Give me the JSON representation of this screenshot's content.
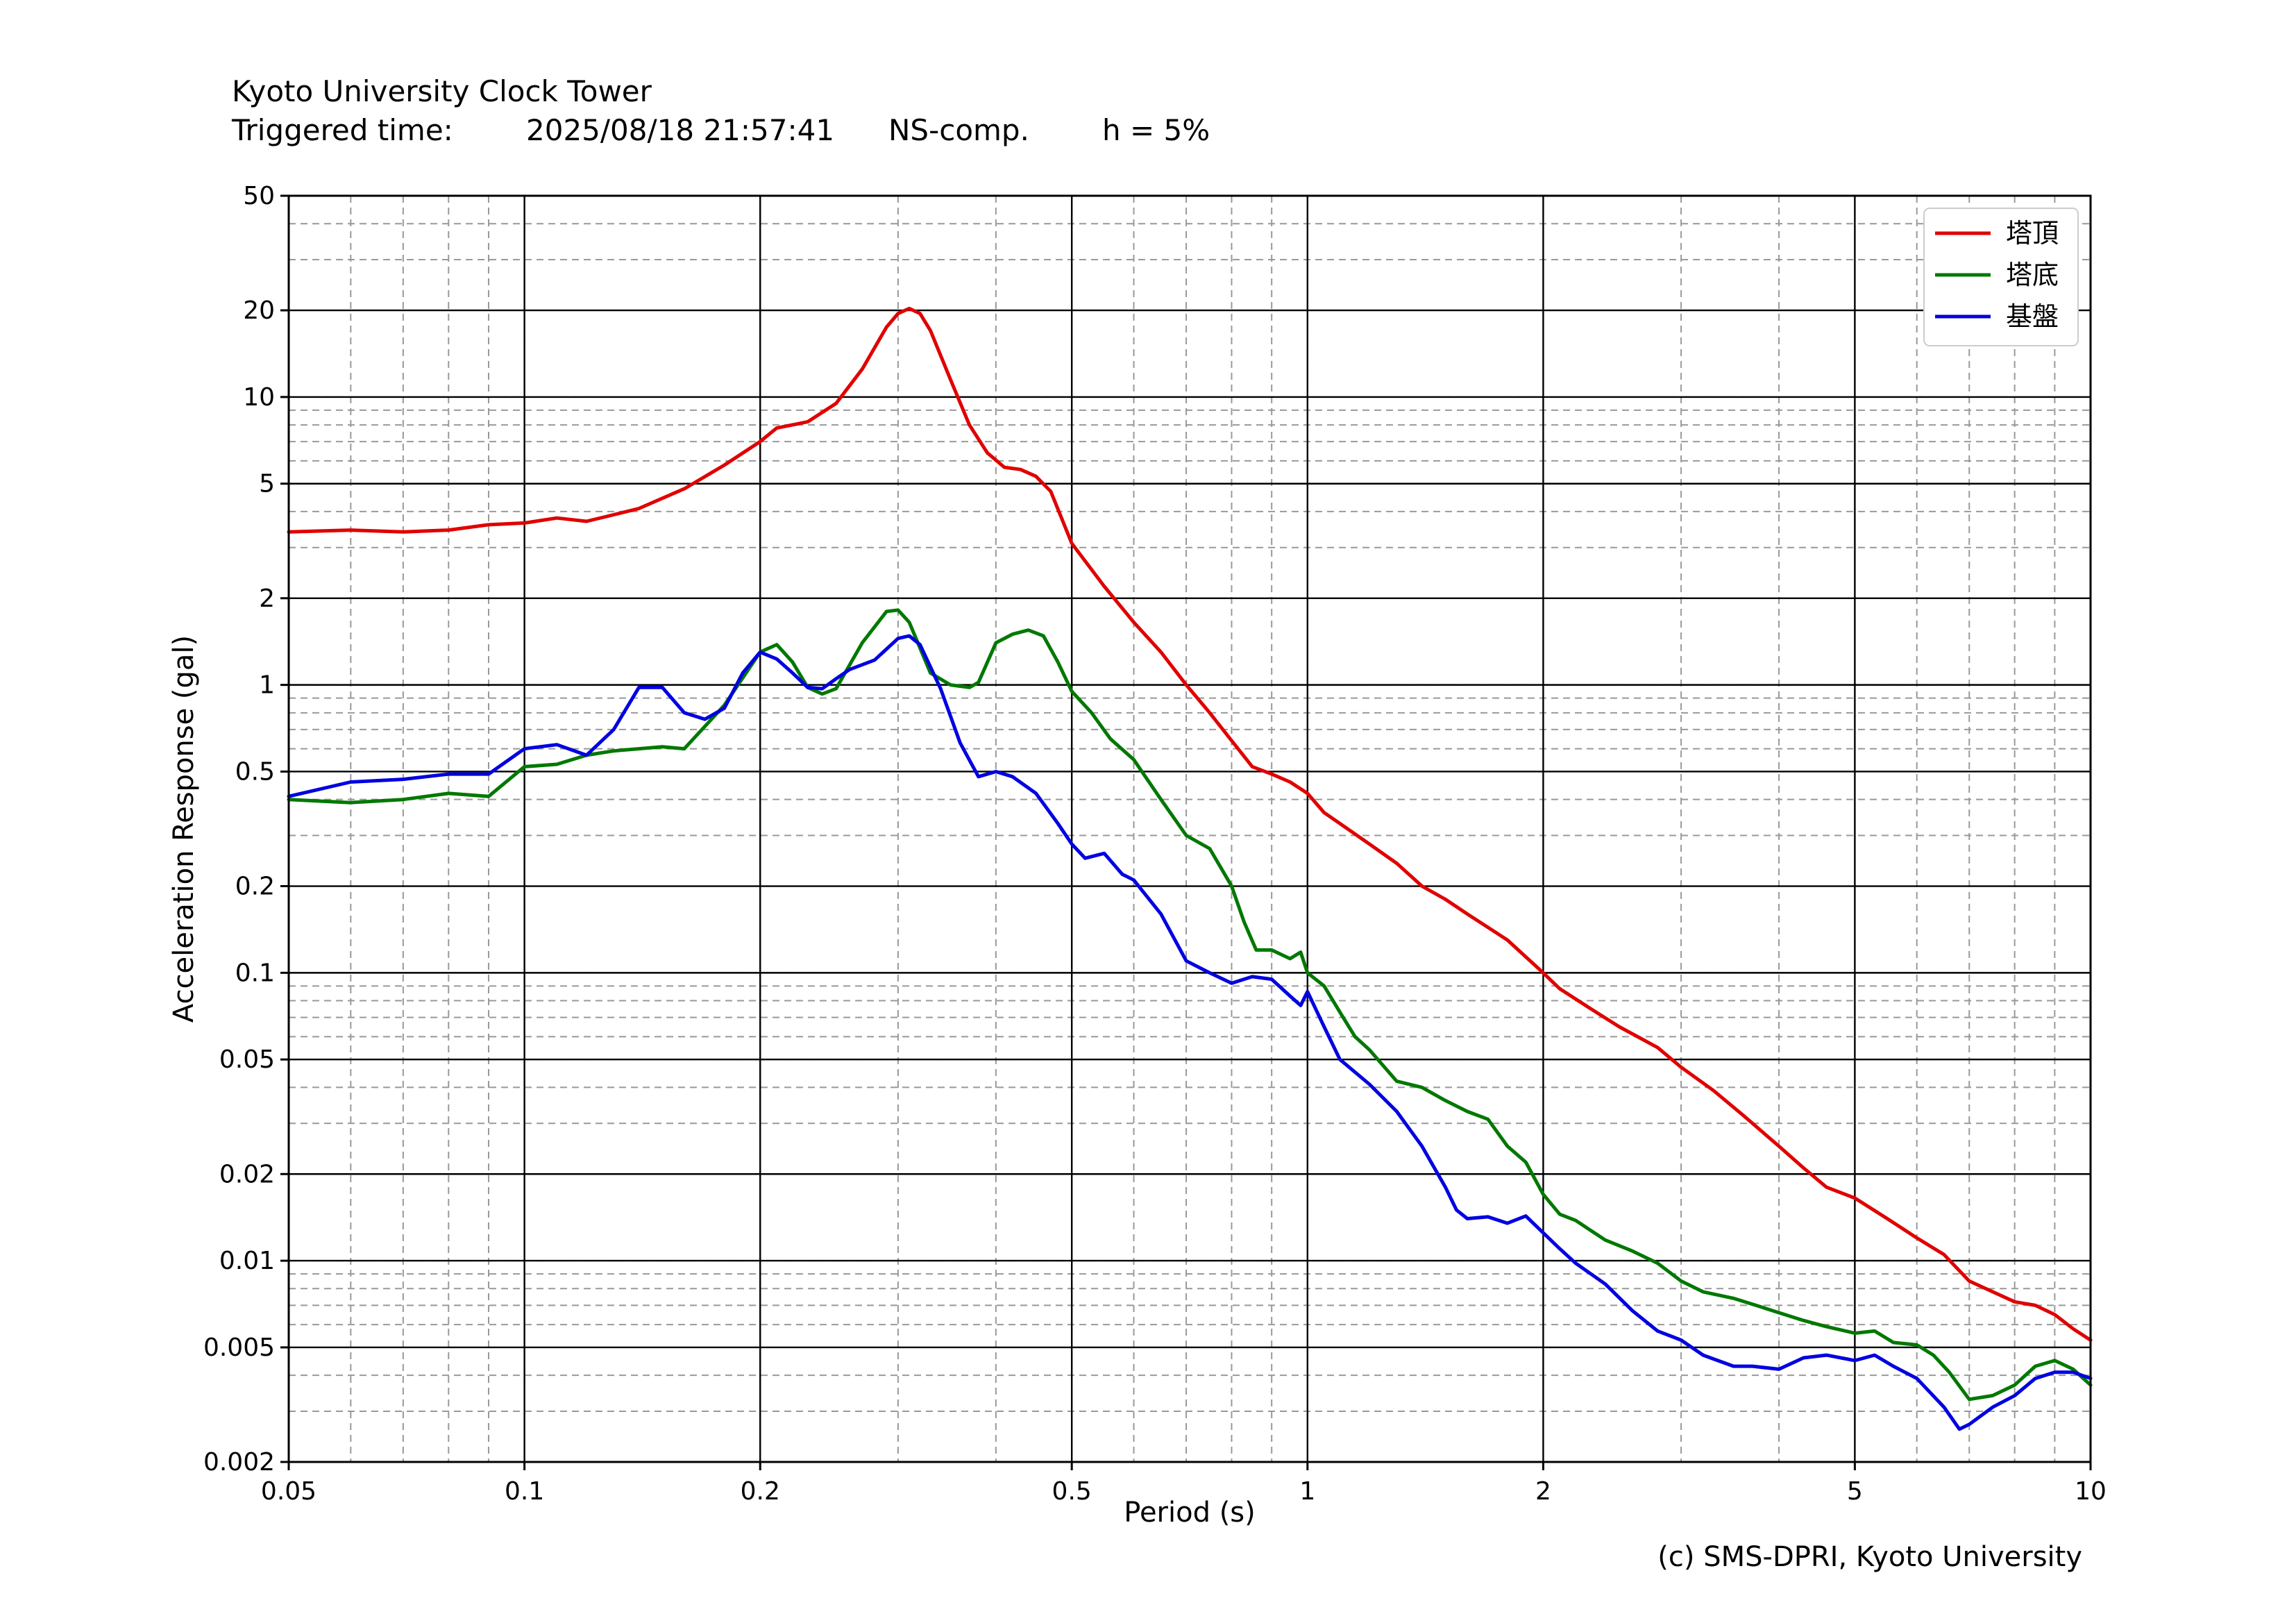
{
  "header": {
    "title": "Kyoto University Clock Tower",
    "triggered_label": "Triggered time:",
    "triggered_value": "2025/08/18 21:57:41",
    "component": "NS-comp.",
    "damping": "h = 5%"
  },
  "credit": "(c) SMS-DPRI, Kyoto University",
  "chart_data": {
    "type": "line",
    "xlabel": "Period (s)",
    "ylabel": "Acceleration Response (gal)",
    "xscale": "log",
    "yscale": "log",
    "xlim": [
      0.05,
      10
    ],
    "ylim": [
      0.002,
      50
    ],
    "grid": true,
    "legend_position": "top-right",
    "x_ticks": [
      {
        "v": 0.05,
        "label": "0.05"
      },
      {
        "v": 0.1,
        "label": "0.1"
      },
      {
        "v": 0.2,
        "label": "0.2"
      },
      {
        "v": 0.5,
        "label": "0.5"
      },
      {
        "v": 1,
        "label": "1"
      },
      {
        "v": 2,
        "label": "2"
      },
      {
        "v": 5,
        "label": "5"
      },
      {
        "v": 10,
        "label": "10"
      }
    ],
    "y_ticks": [
      {
        "v": 0.002,
        "label": "0.002"
      },
      {
        "v": 0.005,
        "label": "0.005"
      },
      {
        "v": 0.01,
        "label": "0.01"
      },
      {
        "v": 0.02,
        "label": "0.02"
      },
      {
        "v": 0.05,
        "label": "0.05"
      },
      {
        "v": 0.1,
        "label": "0.1"
      },
      {
        "v": 0.2,
        "label": "0.2"
      },
      {
        "v": 0.5,
        "label": "0.5"
      },
      {
        "v": 1,
        "label": "1"
      },
      {
        "v": 2,
        "label": "2"
      },
      {
        "v": 5,
        "label": "5"
      },
      {
        "v": 10,
        "label": "10"
      },
      {
        "v": 20,
        "label": "20"
      },
      {
        "v": 50,
        "label": "50"
      }
    ],
    "series": [
      {
        "name": "塔頂",
        "color": "#e00000",
        "points": [
          [
            0.05,
            3.4
          ],
          [
            0.06,
            3.45
          ],
          [
            0.07,
            3.4
          ],
          [
            0.08,
            3.45
          ],
          [
            0.09,
            3.6
          ],
          [
            0.1,
            3.65
          ],
          [
            0.11,
            3.8
          ],
          [
            0.12,
            3.7
          ],
          [
            0.13,
            3.9
          ],
          [
            0.14,
            4.1
          ],
          [
            0.16,
            4.8
          ],
          [
            0.18,
            5.8
          ],
          [
            0.2,
            7.0
          ],
          [
            0.21,
            7.8
          ],
          [
            0.23,
            8.2
          ],
          [
            0.25,
            9.5
          ],
          [
            0.27,
            12.5
          ],
          [
            0.29,
            17.5
          ],
          [
            0.3,
            19.5
          ],
          [
            0.31,
            20.3
          ],
          [
            0.32,
            19.5
          ],
          [
            0.33,
            17.0
          ],
          [
            0.35,
            11.5
          ],
          [
            0.37,
            8.0
          ],
          [
            0.39,
            6.4
          ],
          [
            0.41,
            5.7
          ],
          [
            0.43,
            5.6
          ],
          [
            0.45,
            5.3
          ],
          [
            0.47,
            4.7
          ],
          [
            0.5,
            3.1
          ],
          [
            0.55,
            2.2
          ],
          [
            0.6,
            1.65
          ],
          [
            0.65,
            1.3
          ],
          [
            0.7,
            1.0
          ],
          [
            0.75,
            0.8
          ],
          [
            0.8,
            0.64
          ],
          [
            0.85,
            0.52
          ],
          [
            0.9,
            0.49
          ],
          [
            0.95,
            0.46
          ],
          [
            1.0,
            0.42
          ],
          [
            1.05,
            0.36
          ],
          [
            1.1,
            0.33
          ],
          [
            1.2,
            0.28
          ],
          [
            1.3,
            0.24
          ],
          [
            1.4,
            0.2
          ],
          [
            1.5,
            0.18
          ],
          [
            1.6,
            0.16
          ],
          [
            1.8,
            0.13
          ],
          [
            2.0,
            0.1
          ],
          [
            2.1,
            0.088
          ],
          [
            2.3,
            0.075
          ],
          [
            2.5,
            0.065
          ],
          [
            2.8,
            0.055
          ],
          [
            3.0,
            0.047
          ],
          [
            3.3,
            0.039
          ],
          [
            3.6,
            0.032
          ],
          [
            4.0,
            0.025
          ],
          [
            4.3,
            0.021
          ],
          [
            4.6,
            0.018
          ],
          [
            5.0,
            0.0165
          ],
          [
            5.5,
            0.014
          ],
          [
            6.0,
            0.012
          ],
          [
            6.5,
            0.0105
          ],
          [
            7.0,
            0.0085
          ],
          [
            7.5,
            0.0078
          ],
          [
            8.0,
            0.0072
          ],
          [
            8.5,
            0.007
          ],
          [
            9.0,
            0.0065
          ],
          [
            9.5,
            0.0058
          ],
          [
            10.0,
            0.0053
          ]
        ]
      },
      {
        "name": "塔底",
        "color": "#007800",
        "points": [
          [
            0.05,
            0.4
          ],
          [
            0.06,
            0.39
          ],
          [
            0.07,
            0.4
          ],
          [
            0.08,
            0.42
          ],
          [
            0.09,
            0.41
          ],
          [
            0.1,
            0.52
          ],
          [
            0.11,
            0.53
          ],
          [
            0.12,
            0.57
          ],
          [
            0.13,
            0.59
          ],
          [
            0.14,
            0.6
          ],
          [
            0.15,
            0.61
          ],
          [
            0.16,
            0.6
          ],
          [
            0.18,
            0.85
          ],
          [
            0.2,
            1.3
          ],
          [
            0.21,
            1.38
          ],
          [
            0.22,
            1.2
          ],
          [
            0.23,
            0.98
          ],
          [
            0.24,
            0.93
          ],
          [
            0.25,
            0.97
          ],
          [
            0.27,
            1.4
          ],
          [
            0.29,
            1.8
          ],
          [
            0.3,
            1.82
          ],
          [
            0.31,
            1.65
          ],
          [
            0.33,
            1.1
          ],
          [
            0.35,
            1.0
          ],
          [
            0.37,
            0.98
          ],
          [
            0.38,
            1.02
          ],
          [
            0.4,
            1.4
          ],
          [
            0.42,
            1.5
          ],
          [
            0.44,
            1.55
          ],
          [
            0.46,
            1.48
          ],
          [
            0.48,
            1.2
          ],
          [
            0.5,
            0.95
          ],
          [
            0.53,
            0.8
          ],
          [
            0.56,
            0.65
          ],
          [
            0.6,
            0.55
          ],
          [
            0.65,
            0.4
          ],
          [
            0.7,
            0.3
          ],
          [
            0.75,
            0.27
          ],
          [
            0.8,
            0.2
          ],
          [
            0.83,
            0.15
          ],
          [
            0.86,
            0.12
          ],
          [
            0.9,
            0.12
          ],
          [
            0.95,
            0.112
          ],
          [
            0.98,
            0.118
          ],
          [
            1.0,
            0.1
          ],
          [
            1.05,
            0.09
          ],
          [
            1.1,
            0.073
          ],
          [
            1.15,
            0.06
          ],
          [
            1.2,
            0.054
          ],
          [
            1.3,
            0.042
          ],
          [
            1.4,
            0.04
          ],
          [
            1.5,
            0.036
          ],
          [
            1.6,
            0.033
          ],
          [
            1.7,
            0.031
          ],
          [
            1.8,
            0.025
          ],
          [
            1.9,
            0.022
          ],
          [
            2.0,
            0.017
          ],
          [
            2.1,
            0.0145
          ],
          [
            2.2,
            0.0138
          ],
          [
            2.4,
            0.0118
          ],
          [
            2.6,
            0.0108
          ],
          [
            2.8,
            0.0098
          ],
          [
            3.0,
            0.0085
          ],
          [
            3.2,
            0.0078
          ],
          [
            3.5,
            0.0074
          ],
          [
            3.8,
            0.0069
          ],
          [
            4.0,
            0.0066
          ],
          [
            4.3,
            0.0062
          ],
          [
            4.6,
            0.0059
          ],
          [
            5.0,
            0.0056
          ],
          [
            5.3,
            0.0057
          ],
          [
            5.6,
            0.0052
          ],
          [
            6.0,
            0.0051
          ],
          [
            6.3,
            0.0047
          ],
          [
            6.6,
            0.0041
          ],
          [
            7.0,
            0.0033
          ],
          [
            7.5,
            0.0034
          ],
          [
            8.0,
            0.0037
          ],
          [
            8.5,
            0.0043
          ],
          [
            9.0,
            0.0045
          ],
          [
            9.5,
            0.0042
          ],
          [
            10.0,
            0.0037
          ]
        ]
      },
      {
        "name": "基盤",
        "color": "#0000e0",
        "points": [
          [
            0.05,
            0.41
          ],
          [
            0.06,
            0.46
          ],
          [
            0.07,
            0.47
          ],
          [
            0.08,
            0.49
          ],
          [
            0.09,
            0.49
          ],
          [
            0.1,
            0.6
          ],
          [
            0.11,
            0.62
          ],
          [
            0.12,
            0.57
          ],
          [
            0.13,
            0.7
          ],
          [
            0.14,
            0.98
          ],
          [
            0.15,
            0.98
          ],
          [
            0.16,
            0.8
          ],
          [
            0.17,
            0.76
          ],
          [
            0.18,
            0.83
          ],
          [
            0.19,
            1.1
          ],
          [
            0.2,
            1.3
          ],
          [
            0.21,
            1.23
          ],
          [
            0.22,
            1.1
          ],
          [
            0.23,
            0.98
          ],
          [
            0.24,
            0.97
          ],
          [
            0.25,
            1.05
          ],
          [
            0.26,
            1.13
          ],
          [
            0.28,
            1.22
          ],
          [
            0.3,
            1.45
          ],
          [
            0.31,
            1.48
          ],
          [
            0.32,
            1.38
          ],
          [
            0.34,
            0.97
          ],
          [
            0.36,
            0.63
          ],
          [
            0.38,
            0.48
          ],
          [
            0.4,
            0.5
          ],
          [
            0.42,
            0.48
          ],
          [
            0.45,
            0.42
          ],
          [
            0.48,
            0.33
          ],
          [
            0.5,
            0.28
          ],
          [
            0.52,
            0.25
          ],
          [
            0.55,
            0.26
          ],
          [
            0.58,
            0.22
          ],
          [
            0.6,
            0.21
          ],
          [
            0.65,
            0.16
          ],
          [
            0.7,
            0.11
          ],
          [
            0.75,
            0.1
          ],
          [
            0.8,
            0.092
          ],
          [
            0.85,
            0.097
          ],
          [
            0.9,
            0.095
          ],
          [
            0.95,
            0.083
          ],
          [
            0.98,
            0.077
          ],
          [
            1.0,
            0.086
          ],
          [
            1.05,
            0.065
          ],
          [
            1.1,
            0.05
          ],
          [
            1.2,
            0.041
          ],
          [
            1.3,
            0.033
          ],
          [
            1.4,
            0.025
          ],
          [
            1.5,
            0.018
          ],
          [
            1.55,
            0.015
          ],
          [
            1.6,
            0.014
          ],
          [
            1.7,
            0.0142
          ],
          [
            1.8,
            0.0135
          ],
          [
            1.9,
            0.0143
          ],
          [
            2.0,
            0.0125
          ],
          [
            2.1,
            0.011
          ],
          [
            2.2,
            0.0098
          ],
          [
            2.4,
            0.0083
          ],
          [
            2.6,
            0.0067
          ],
          [
            2.8,
            0.0057
          ],
          [
            3.0,
            0.0053
          ],
          [
            3.2,
            0.0047
          ],
          [
            3.5,
            0.0043
          ],
          [
            3.7,
            0.0043
          ],
          [
            4.0,
            0.0042
          ],
          [
            4.3,
            0.0046
          ],
          [
            4.6,
            0.0047
          ],
          [
            5.0,
            0.0045
          ],
          [
            5.3,
            0.0047
          ],
          [
            5.6,
            0.0043
          ],
          [
            6.0,
            0.0039
          ],
          [
            6.5,
            0.0031
          ],
          [
            6.8,
            0.0026
          ],
          [
            7.0,
            0.0027
          ],
          [
            7.5,
            0.0031
          ],
          [
            8.0,
            0.0034
          ],
          [
            8.5,
            0.0039
          ],
          [
            9.0,
            0.0041
          ],
          [
            9.5,
            0.0041
          ],
          [
            10.0,
            0.0039
          ]
        ]
      }
    ]
  }
}
